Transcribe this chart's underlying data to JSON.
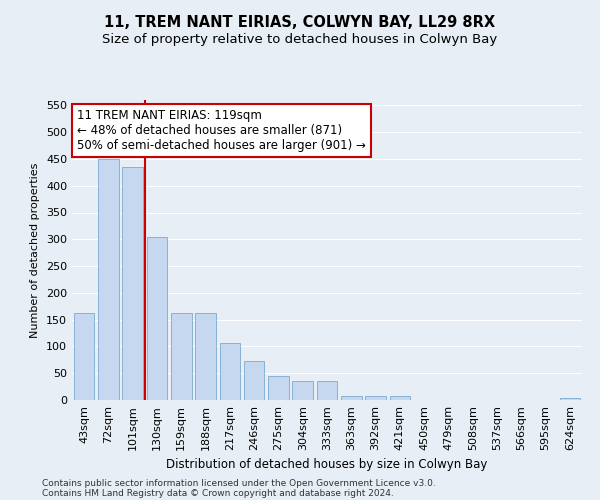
{
  "title": "11, TREM NANT EIRIAS, COLWYN BAY, LL29 8RX",
  "subtitle": "Size of property relative to detached houses in Colwyn Bay",
  "xlabel": "Distribution of detached houses by size in Colwyn Bay",
  "ylabel": "Number of detached properties",
  "categories": [
    "43sqm",
    "72sqm",
    "101sqm",
    "130sqm",
    "159sqm",
    "188sqm",
    "217sqm",
    "246sqm",
    "275sqm",
    "304sqm",
    "333sqm",
    "363sqm",
    "392sqm",
    "421sqm",
    "450sqm",
    "479sqm",
    "508sqm",
    "537sqm",
    "566sqm",
    "595sqm",
    "624sqm"
  ],
  "values": [
    162,
    450,
    435,
    305,
    163,
    163,
    106,
    73,
    44,
    35,
    35,
    8,
    8,
    7,
    0,
    0,
    0,
    0,
    0,
    0,
    3
  ],
  "bar_color": "#c5d8ef",
  "bar_edge_color": "#7aabcf",
  "vline_x": 2.5,
  "vline_color": "#cc0000",
  "annotation_text": "11 TREM NANT EIRIAS: 119sqm\n← 48% of detached houses are smaller (871)\n50% of semi-detached houses are larger (901) →",
  "annotation_box_facecolor": "#ffffff",
  "annotation_box_edgecolor": "#cc0000",
  "ylim": [
    0,
    560
  ],
  "yticks": [
    0,
    50,
    100,
    150,
    200,
    250,
    300,
    350,
    400,
    450,
    500,
    550
  ],
  "footer_line1": "Contains HM Land Registry data © Crown copyright and database right 2024.",
  "footer_line2": "Contains public sector information licensed under the Open Government Licence v3.0.",
  "bg_color": "#e8eef5",
  "grid_color": "#ffffff",
  "title_fontsize": 10.5,
  "subtitle_fontsize": 9.5,
  "annotation_fontsize": 8.5,
  "axis_fontsize": 8,
  "xlabel_fontsize": 8.5,
  "ylabel_fontsize": 8,
  "footer_fontsize": 6.5
}
